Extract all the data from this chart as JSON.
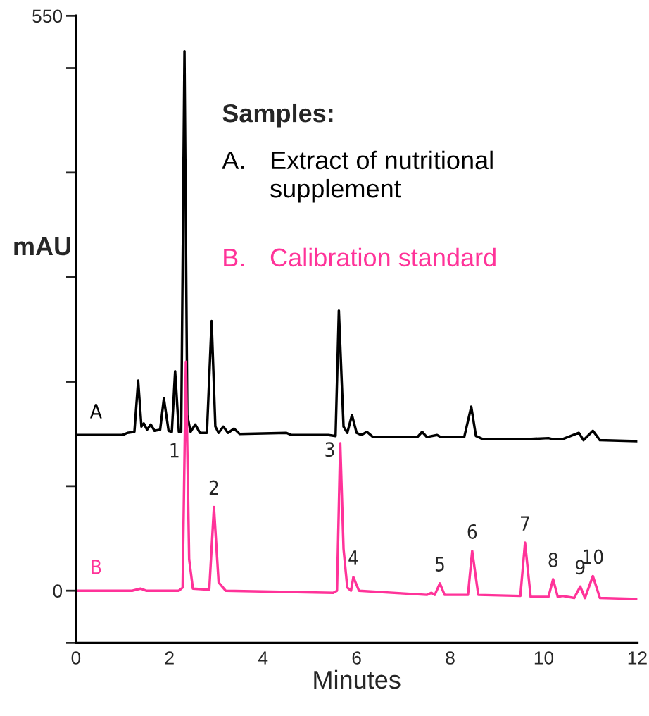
{
  "chart_data": {
    "type": "line",
    "xlabel": "Minutes",
    "ylabel": "mAU",
    "xlim": [
      0,
      12
    ],
    "xticks": [
      0,
      2,
      4,
      6,
      8,
      10,
      12
    ],
    "ylim": [
      -50,
      550
    ],
    "yticks": [
      {
        "value": -50,
        "label": null
      },
      0,
      {
        "value": 100,
        "label": null
      },
      {
        "value": 200,
        "label": null
      },
      {
        "value": 300,
        "label": null
      },
      {
        "value": 400,
        "label": null
      },
      {
        "value": 500,
        "label": null
      },
      550
    ],
    "grid": false,
    "legend": false,
    "marker": "none",
    "line_style": "solid",
    "series": [
      {
        "name": "A",
        "color": "#000000",
        "x": [
          0,
          1.0,
          1.1,
          1.25,
          1.33,
          1.4,
          1.45,
          1.52,
          1.6,
          1.68,
          1.8,
          1.88,
          1.98,
          2.05,
          2.12,
          2.2,
          2.25,
          2.32,
          2.38,
          2.45,
          2.55,
          2.65,
          2.8,
          2.9,
          2.98,
          3.05,
          3.15,
          3.25,
          3.38,
          3.5,
          4.5,
          4.6,
          5.4,
          5.55,
          5.62,
          5.72,
          5.8,
          5.9,
          6.0,
          6.1,
          6.22,
          6.35,
          7.3,
          7.4,
          7.5,
          7.72,
          7.8,
          8.3,
          8.45,
          8.55,
          8.7,
          9.6,
          10.1,
          10.2,
          10.4,
          10.75,
          10.85,
          11.05,
          11.2,
          12
        ],
        "values": [
          149,
          149,
          151,
          152,
          201,
          157,
          160,
          154,
          159,
          153,
          154,
          184,
          153,
          152,
          210,
          152,
          152,
          516,
          168,
          152,
          159,
          151,
          151,
          258,
          157,
          151,
          157,
          151,
          155,
          150,
          151,
          149,
          149,
          148,
          268,
          157,
          151,
          168,
          151,
          149,
          152,
          147,
          147,
          152,
          147,
          149,
          147,
          147,
          176,
          148,
          145,
          145,
          146,
          145,
          145,
          151,
          144,
          153,
          144,
          143
        ]
      },
      {
        "name": "B",
        "color": "#ff3399",
        "x": [
          0,
          1.2,
          1.38,
          1.5,
          2.2,
          2.28,
          2.35,
          2.42,
          2.5,
          2.85,
          2.95,
          3.05,
          3.2,
          5.5,
          5.58,
          5.65,
          5.72,
          5.8,
          5.88,
          5.93,
          6.05,
          7.5,
          7.6,
          7.67,
          7.78,
          7.88,
          8.38,
          8.47,
          8.6,
          9.5,
          9.6,
          9.72,
          10.1,
          10.2,
          10.3,
          10.4,
          10.65,
          10.78,
          10.88,
          11.05,
          11.2,
          12
        ],
        "values": [
          0,
          0,
          2,
          0,
          0,
          3,
          219,
          30,
          2,
          1,
          80,
          8,
          0,
          -2,
          0,
          141,
          40,
          3,
          0,
          13,
          0,
          -4,
          -2,
          -4,
          7,
          -4,
          -4,
          38,
          -4,
          -5,
          46,
          -6,
          -6,
          11,
          -6,
          -5,
          -7,
          4,
          -7,
          14,
          -7,
          -8
        ]
      }
    ],
    "annotations": [
      "Samples:",
      "A. Extract of nutritional\nsupplement",
      "B. Calibration standard",
      {
        "text": "1",
        "x": 2.33,
        "y": 140
      },
      {
        "text": "2",
        "x": 2.95,
        "y": 80
      },
      {
        "text": "3",
        "x": 5.65,
        "y": 141
      },
      {
        "text": "4",
        "x": 5.93,
        "y": 13
      },
      {
        "text": "5",
        "x": 7.78,
        "y": 7
      },
      {
        "text": "6",
        "x": 8.47,
        "y": 38
      },
      {
        "text": "7",
        "x": 9.6,
        "y": 46
      },
      {
        "text": "8",
        "x": 10.2,
        "y": 11
      },
      {
        "text": "9",
        "x": 10.78,
        "y": 4
      },
      {
        "text": "10",
        "x": 11.05,
        "y": 14
      }
    ]
  }
}
